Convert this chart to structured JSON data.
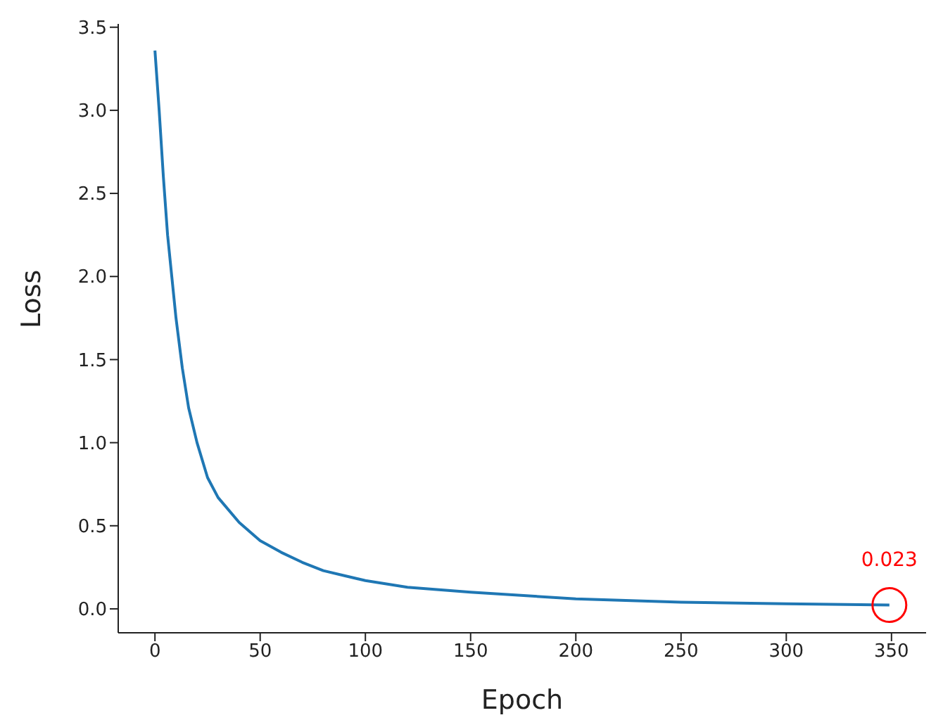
{
  "chart_data": {
    "type": "line",
    "xlabel": "Epoch",
    "ylabel": "Loss",
    "x": [
      0,
      2,
      4,
      6,
      8,
      10,
      13,
      16,
      20,
      25,
      30,
      40,
      50,
      60,
      70,
      80,
      90,
      100,
      120,
      150,
      200,
      250,
      300,
      349
    ],
    "series": [
      {
        "color": "#1f77b4",
        "values": [
          3.36,
          3.0,
          2.6,
          2.25,
          2.0,
          1.75,
          1.45,
          1.21,
          1.0,
          0.79,
          0.67,
          0.52,
          0.41,
          0.34,
          0.28,
          0.23,
          0.2,
          0.17,
          0.13,
          0.1,
          0.06,
          0.04,
          0.03,
          0.023
        ]
      }
    ],
    "xlim": [
      -17.45,
      366.45
    ],
    "xticks": [
      0,
      50,
      100,
      150,
      200,
      250,
      300,
      350
    ],
    "ylim": [
      -0.144,
      3.52
    ],
    "yticks": [
      {
        "value": 0,
        "label": "0.0"
      },
      {
        "value": 0.5,
        "label": "0.5"
      },
      {
        "value": 1,
        "label": "1.0"
      },
      {
        "value": 1.5,
        "label": "1.5"
      },
      {
        "value": 2,
        "label": "2.0"
      },
      {
        "value": 2.5,
        "label": "2.5"
      },
      {
        "value": 3,
        "label": "3.0"
      },
      {
        "value": 3.5,
        "label": "3.5"
      }
    ],
    "annotations": [
      {
        "text": "0.023",
        "x": 349,
        "y": 0.023
      }
    ],
    "grid": false,
    "legend": false,
    "marker": "none",
    "line_style": "solid"
  }
}
